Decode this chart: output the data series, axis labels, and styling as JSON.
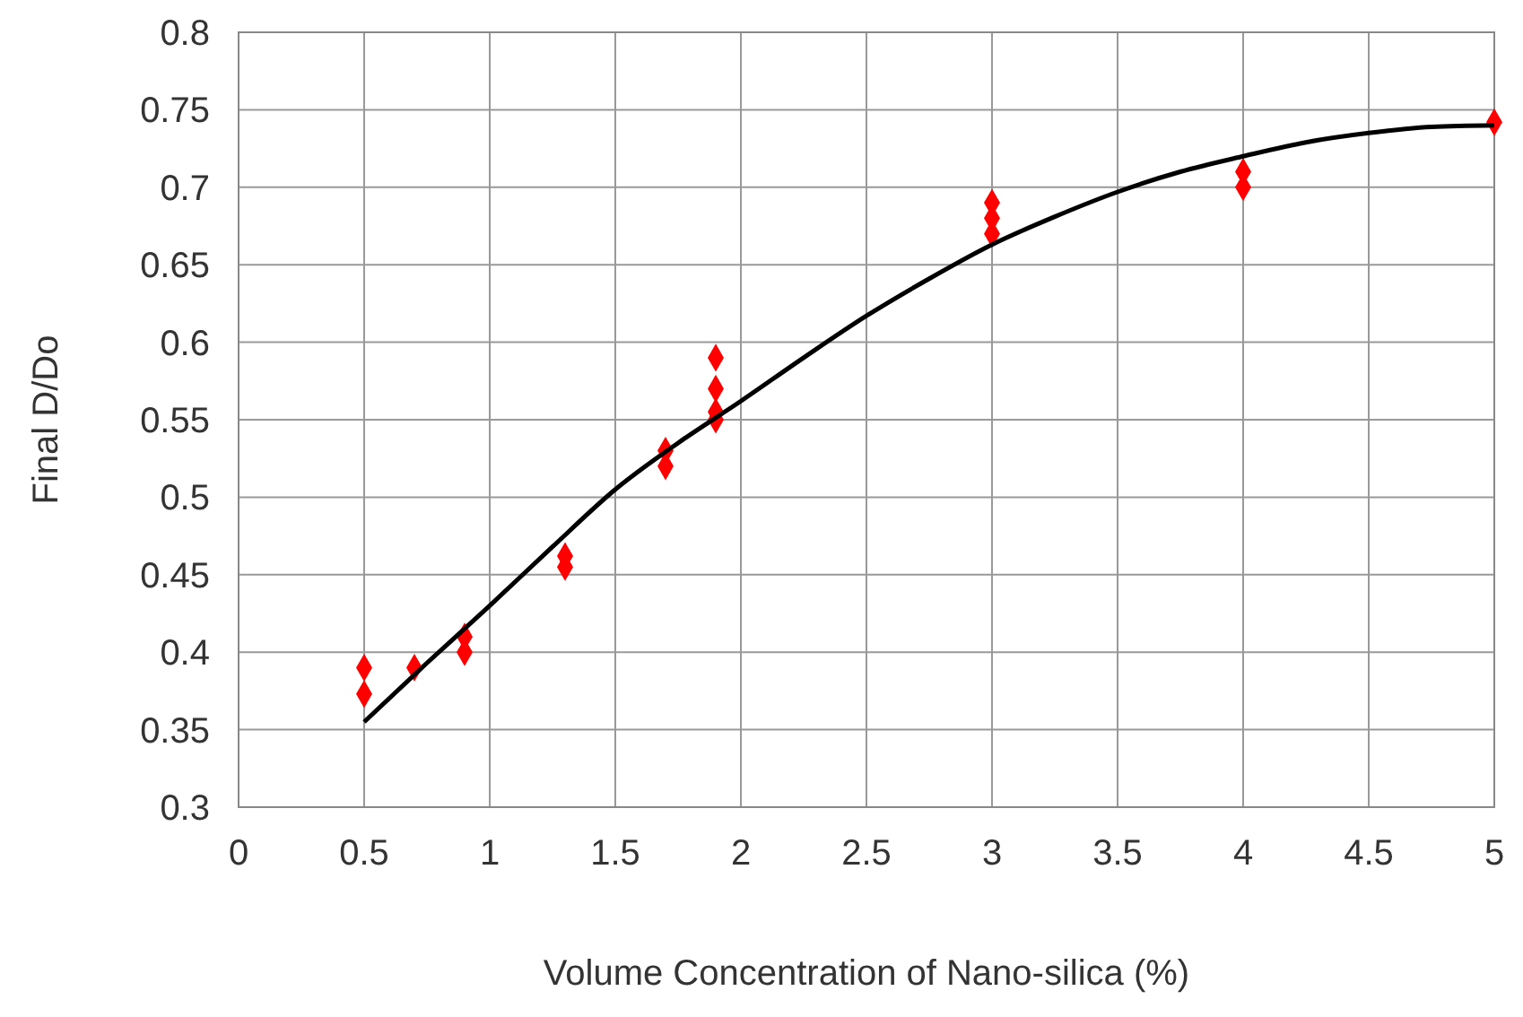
{
  "chart_data": {
    "type": "scatter",
    "xlabel": "Volume Concentration of Nano-silica (%)",
    "ylabel": "Final D/Do",
    "xlim": [
      0,
      5
    ],
    "xticks": [
      0,
      0.5,
      1,
      1.5,
      2,
      2.5,
      3,
      3.5,
      4,
      4.5,
      5
    ],
    "ylim": [
      0.3,
      0.8
    ],
    "yticks": [
      0.3,
      0.35,
      0.4,
      0.45,
      0.5,
      0.55,
      0.6,
      0.65,
      0.7,
      0.75,
      0.8
    ],
    "grid": true,
    "series": [
      {
        "color": "#ff0000",
        "marker": "diamond",
        "x": [
          0.5,
          0.5,
          0.7,
          0.9,
          0.9,
          1.3,
          1.3,
          1.7,
          1.7,
          1.9,
          1.9,
          1.9,
          1.9,
          3,
          3,
          3,
          4,
          4,
          5
        ],
        "values": [
          0.39,
          0.373,
          0.39,
          0.41,
          0.4,
          0.462,
          0.455,
          0.53,
          0.52,
          0.59,
          0.57,
          0.555,
          0.55,
          0.69,
          0.68,
          0.67,
          0.71,
          0.7,
          0.742
        ]
      },
      {
        "type": "line",
        "color": "#000000",
        "marker": "none",
        "x": [
          0.5,
          0.75,
          1,
          1.25,
          1.5,
          1.75,
          2,
          2.25,
          2.5,
          2.75,
          3,
          3.25,
          3.5,
          3.75,
          4,
          4.25,
          4.5,
          4.75,
          5
        ],
        "values": [
          0.355,
          0.393,
          0.43,
          0.468,
          0.505,
          0.535,
          0.562,
          0.59,
          0.617,
          0.641,
          0.663,
          0.681,
          0.697,
          0.71,
          0.72,
          0.729,
          0.735,
          0.739,
          0.74
        ]
      }
    ]
  }
}
